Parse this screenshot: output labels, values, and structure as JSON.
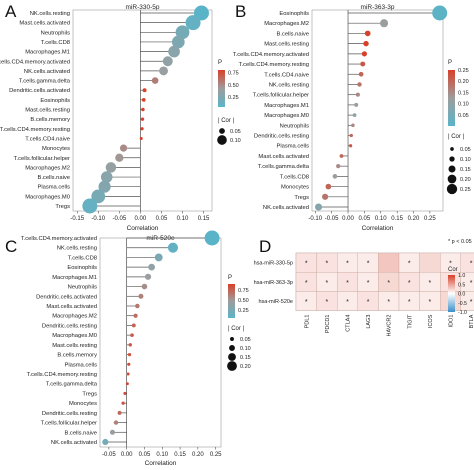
{
  "chart_data": [
    {
      "type": "scatter",
      "panel_letter": "A",
      "title": "miR-330-5p",
      "xlabel": "Correlation",
      "xlim": [
        -0.16,
        0.17
      ],
      "xticks": [
        -0.15,
        -0.1,
        -0.05,
        0.0,
        0.05,
        0.1,
        0.15
      ],
      "xtick_labels": [
        "-0.15",
        "-0.10",
        "-0.05",
        "0.00",
        "0.05",
        "0.10",
        "0.15"
      ],
      "categories": [
        "NK.cells.resting",
        "Mast.cells.activated",
        "Neutrophils",
        "T.cells.CD8",
        "Macrophages.M1",
        "T.cells.CD4.memory.activated",
        "NK.cells.activated",
        "T.cells.gamma.delta",
        "Dendritic.cells.activated",
        "Eosinophils",
        "Mast.cells.resting",
        "B.cells.memory",
        "T.cells.CD4.memory.resting",
        "T.cells.CD4.naive",
        "Monocytes",
        "T.cells.follicular.helper",
        "Macrophages.M2",
        "B.cells.naive",
        "Plasma.cells",
        "Macrophages.M0",
        "Tregs"
      ],
      "values": [
        0.145,
        0.125,
        0.1,
        0.09,
        0.08,
        0.065,
        0.055,
        0.035,
        0.01,
        0.008,
        0.006,
        0.005,
        0.004,
        0.002,
        -0.04,
        -0.05,
        -0.07,
        -0.08,
        -0.085,
        -0.1,
        -0.12
      ],
      "pvalues": [
        0.05,
        0.1,
        0.2,
        0.25,
        0.3,
        0.35,
        0.4,
        0.55,
        0.85,
        0.9,
        0.95,
        0.97,
        0.98,
        0.99,
        0.5,
        0.45,
        0.38,
        0.3,
        0.28,
        0.22,
        0.1
      ],
      "color_legend": {
        "title": "P",
        "min": 0.05,
        "max": 0.8,
        "ticks": [
          0.75,
          0.5,
          0.25
        ],
        "tick_labels": [
          "0.75",
          "0.50",
          "0.25"
        ]
      },
      "size_legend": {
        "title": "| Cor |",
        "values": [
          0.05,
          0.1
        ],
        "labels": [
          "0.05",
          "0.10"
        ]
      }
    },
    {
      "type": "scatter",
      "panel_letter": "B",
      "title": "miR-363-3p",
      "xlabel": "Correlation",
      "xlim": [
        -0.11,
        0.29
      ],
      "xticks": [
        -0.1,
        -0.05,
        0.0,
        0.05,
        0.1,
        0.15,
        0.2,
        0.25
      ],
      "xtick_labels": [
        "-0.10",
        "-0.05",
        "0.00",
        "0.05",
        "0.10",
        "0.15",
        "0.20",
        "0.25"
      ],
      "categories": [
        "Eosinophils",
        "Macrophages.M2",
        "B.cells.naive",
        "Mast.cells.resting",
        "T.cells.CD4.memory.activated",
        "T.cells.CD4.memory.resting",
        "T.cells.CD4.naive",
        "NK.cells.resting",
        "T.cells.follicular.helper",
        "Macrophages.M1",
        "Macrophages.M0",
        "Neutrophils",
        "Dendritic.cells.resting",
        "Plasma.cells",
        "Mast.cells.activated",
        "T.cells.gamma.delta",
        "T.cells.CD8",
        "Monocytes",
        "Tregs",
        "NK.cells.activated"
      ],
      "values": [
        0.28,
        0.11,
        0.06,
        0.055,
        0.05,
        0.045,
        0.04,
        0.035,
        0.03,
        0.025,
        0.02,
        0.015,
        0.01,
        0.008,
        -0.02,
        -0.03,
        -0.04,
        -0.06,
        -0.07,
        -0.09
      ],
      "pvalues": [
        0.005,
        0.12,
        0.3,
        0.32,
        0.25,
        0.22,
        0.2,
        0.18,
        0.15,
        0.12,
        0.1,
        0.15,
        0.2,
        0.22,
        0.2,
        0.15,
        0.12,
        0.2,
        0.18,
        0.08
      ],
      "color_legend": {
        "title": "P",
        "min": 0.0,
        "max": 0.25,
        "ticks": [
          0.25,
          0.2,
          0.15,
          0.1,
          0.05
        ],
        "tick_labels": [
          "0.25",
          "0.20",
          "0.15",
          "0.10",
          "0.05"
        ]
      },
      "size_legend": {
        "title": "| Cor |",
        "values": [
          0.05,
          0.1,
          0.15,
          0.2,
          0.25
        ],
        "labels": [
          "0.05",
          "0.10",
          "0.15",
          "0.20",
          "0.25"
        ]
      }
    },
    {
      "type": "scatter",
      "panel_letter": "C",
      "title": "miR-520e",
      "xlabel": "Correlation",
      "xlim": [
        -0.075,
        0.265
      ],
      "xticks": [
        -0.05,
        0.0,
        0.05,
        0.1,
        0.15,
        0.2,
        0.25
      ],
      "xtick_labels": [
        "-0.05",
        "0.00",
        "0.05",
        "0.10",
        "0.15",
        "0.20",
        "0.25"
      ],
      "categories": [
        "T.cells.CD4.memory.activated",
        "NK.cells.resting",
        "T.cells.CD8",
        "Eosinophils",
        "Macrophages.M1",
        "Neutrophils",
        "Dendritic.cells.activated",
        "Mast.cells.activated",
        "Macrophages.M2",
        "Dendritic.cells.resting",
        "Macrophages.M0",
        "Mast.cells.resting",
        "B.cells.memory",
        "Plasma.cells",
        "T.cells.CD4.memory.resting",
        "T.cells.gamma.delta",
        "Tregs",
        "Monocytes",
        "Dendritic.cells.resting",
        "T.cells.follicular.helper",
        "B.cells.naive",
        "NK.cells.activated"
      ],
      "values": [
        0.24,
        0.13,
        0.09,
        0.07,
        0.06,
        0.05,
        0.04,
        0.03,
        0.025,
        0.02,
        0.015,
        0.01,
        0.008,
        0.006,
        0.004,
        0.002,
        -0.005,
        -0.01,
        -0.02,
        -0.03,
        -0.04,
        -0.06
      ],
      "pvalues": [
        0.02,
        0.1,
        0.25,
        0.4,
        0.45,
        0.55,
        0.6,
        0.65,
        0.7,
        0.75,
        0.78,
        0.8,
        0.82,
        0.84,
        0.86,
        0.88,
        0.85,
        0.8,
        0.72,
        0.6,
        0.45,
        0.2
      ],
      "color_legend": {
        "title": "P",
        "min": 0.05,
        "max": 0.9,
        "ticks": [
          0.75,
          0.5,
          0.25
        ],
        "tick_labels": [
          "0.75",
          "0.50",
          "0.25"
        ]
      },
      "size_legend": {
        "title": "| Cor |",
        "values": [
          0.05,
          0.1,
          0.15,
          0.2
        ],
        "labels": [
          "0.05",
          "0.10",
          "0.15",
          "0.20"
        ]
      }
    },
    {
      "type": "heatmap",
      "panel_letter": "D",
      "rows": [
        "hsa-miR-330-5p",
        "hsa-miR-363-3p",
        "hsa-miR-520e"
      ],
      "columns": [
        "PDL1",
        "PDCD1",
        "CTLA4",
        "LAG3",
        "HAVCR2",
        "TIGIT",
        "ICOS",
        "IDO1",
        "BTLA"
      ],
      "values": [
        [
          0.15,
          0.15,
          0.1,
          0.1,
          0.3,
          0.1,
          0.2,
          0.1,
          0.15
        ],
        [
          0.15,
          0.1,
          0.15,
          0.1,
          0.2,
          0.15,
          0.1,
          0.15,
          0.1
        ],
        [
          0.1,
          0.15,
          0.1,
          0.15,
          0.1,
          0.1,
          0.1,
          0.2,
          0.1
        ]
      ],
      "significant": [
        [
          true,
          true,
          true,
          true,
          false,
          true,
          false,
          true,
          true
        ],
        [
          true,
          true,
          true,
          true,
          true,
          true,
          true,
          true,
          true
        ],
        [
          true,
          true,
          true,
          true,
          true,
          true,
          true,
          true,
          true
        ]
      ],
      "significance_note": "* p < 0.05",
      "star_symbol": "*",
      "color_legend": {
        "title": "Cor",
        "min": -1.0,
        "max": 1.0,
        "ticks": [
          1.0,
          0.5,
          0.0,
          -0.5,
          -1.0
        ],
        "tick_labels": [
          "1.0",
          "0.5",
          "0.0",
          "-0.5",
          "-1.0"
        ]
      }
    }
  ],
  "colors": {
    "high_p": "#d8402a",
    "mid_p": "#9d9d9d",
    "low_p": "#5ab4c8",
    "axis": "#333333",
    "stem": "#555555"
  }
}
